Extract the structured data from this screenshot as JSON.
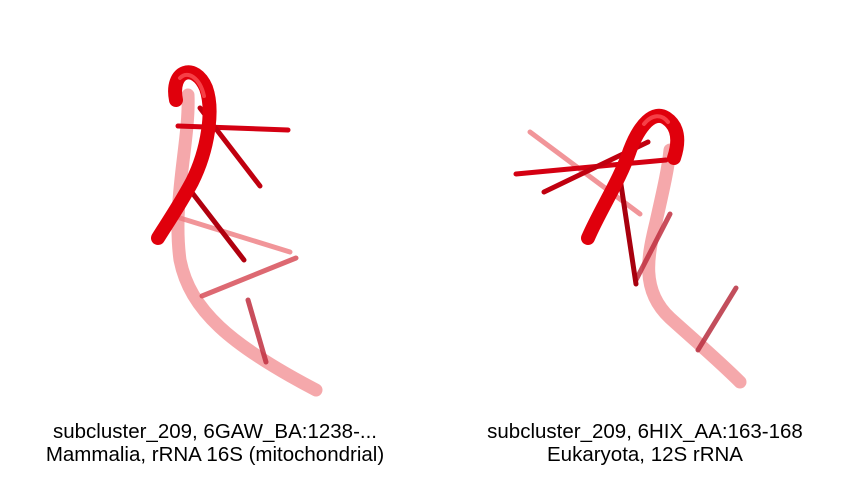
{
  "panels": [
    {
      "caption_line1": "subcluster_209, 6GAW_BA:1238-...",
      "caption_line2": "Mammalia, rRNA 16S (mitochondrial)"
    },
    {
      "caption_line1": "subcluster_209, 6HIX_AA:163-168",
      "caption_line2": "Eukaryota, 12S rRNA"
    }
  ],
  "colors": {
    "backbone": "#e0000c",
    "backbone_faded": "#f07b80",
    "base_dark": "#b50010",
    "background": "#ffffff"
  }
}
